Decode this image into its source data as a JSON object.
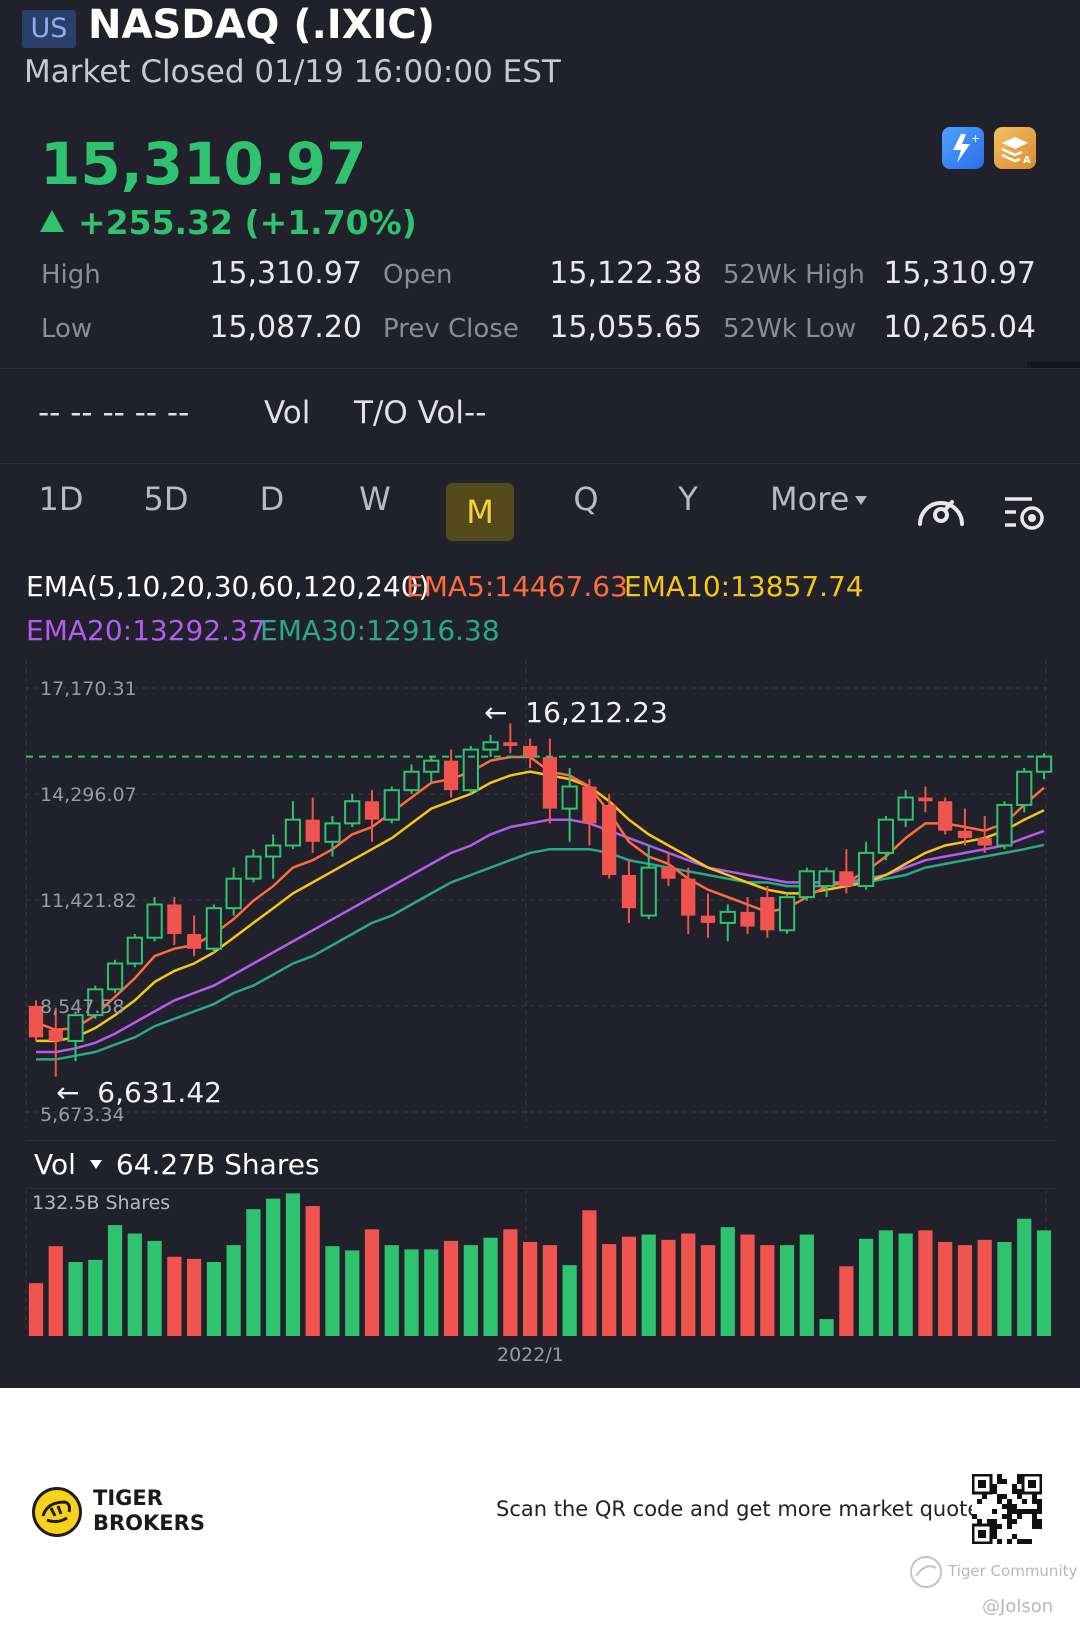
{
  "header": {
    "market_badge": "US",
    "title": "NASDAQ (.IXIC)",
    "status": "Market Closed 01/19 16:00:00 EST"
  },
  "quote": {
    "price": "15,310.97",
    "change": "+255.32 (+1.70%)",
    "stats": [
      {
        "label": "High",
        "value": "15,310.97"
      },
      {
        "label": "Open",
        "value": "15,122.38"
      },
      {
        "label": "52Wk High",
        "value": "15,310.97"
      },
      {
        "label": "Low",
        "value": "15,087.20"
      },
      {
        "label": "Prev Close",
        "value": "15,055.65"
      },
      {
        "label": "52Wk Low",
        "value": "10,265.04"
      }
    ]
  },
  "volume_row": {
    "placeholders": "-- -- -- -- --",
    "vol_label": "Vol",
    "turnover": "T/O Vol--"
  },
  "tabs": {
    "d1": "1D",
    "d5": "5D",
    "d": "D",
    "w": "W",
    "m": "M",
    "q": "Q",
    "y": "Y",
    "more": "More",
    "active": "M"
  },
  "indicators": {
    "ema_title": "EMA(5,10,20,30,60,120,240)",
    "ema5": "EMA5:14467.63",
    "ema10": "EMA10:13857.74",
    "ema20": "EMA20:13292.37",
    "ema30": "EMA30:12916.38"
  },
  "colors": {
    "up": "#2fc36f",
    "down": "#f0544f",
    "ema5": "#ff6b3d",
    "ema10": "#f5c518",
    "ema20": "#b45cf0",
    "ema30": "#2aa889",
    "background": "#20212a"
  },
  "chart_data": {
    "type": "candlestick",
    "y_ticks": [
      "17,170.31",
      "14,296.07",
      "11,421.82",
      "8,547.58",
      "5,673.34"
    ],
    "ylim": [
      5673.34,
      17170.31
    ],
    "current_price": 15310.97,
    "annotations": {
      "high": "16,212.23",
      "low": "6,631.42"
    },
    "x_label": "2022/1",
    "ohlc": [
      [
        8550,
        8700,
        7600,
        7700
      ],
      [
        7900,
        8500,
        6631.42,
        7600
      ],
      [
        7600,
        8400,
        7050,
        8300
      ],
      [
        8300,
        9100,
        8200,
        9000
      ],
      [
        9000,
        9800,
        8900,
        9700
      ],
      [
        9700,
        10500,
        9600,
        10400
      ],
      [
        10400,
        11500,
        10300,
        11300
      ],
      [
        11300,
        11500,
        10200,
        10500
      ],
      [
        10500,
        11000,
        9900,
        10100
      ],
      [
        10100,
        11300,
        10000,
        11200
      ],
      [
        11200,
        12300,
        11000,
        12000
      ],
      [
        12000,
        12800,
        11900,
        12600
      ],
      [
        12600,
        13200,
        12000,
        12900
      ],
      [
        12900,
        14100,
        12800,
        13600
      ],
      [
        13600,
        14200,
        12700,
        13000
      ],
      [
        13000,
        13700,
        12600,
        13500
      ],
      [
        13500,
        14300,
        13400,
        14100
      ],
      [
        14100,
        14400,
        13000,
        13600
      ],
      [
        13600,
        14500,
        13500,
        14400
      ],
      [
        14400,
        15100,
        14300,
        14900
      ],
      [
        14900,
        15300,
        14600,
        15200
      ],
      [
        15200,
        15500,
        14200,
        14400
      ],
      [
        14400,
        15600,
        14300,
        15500
      ],
      [
        15500,
        15900,
        15300,
        15700
      ],
      [
        15700,
        16212.23,
        15400,
        15600
      ],
      [
        15600,
        15800,
        15000,
        15300
      ],
      [
        15300,
        15800,
        13500,
        13900
      ],
      [
        13900,
        15000,
        13000,
        14500
      ],
      [
        14500,
        14700,
        12900,
        13500
      ],
      [
        14000,
        14300,
        12000,
        12100
      ],
      [
        12100,
        12500,
        10800,
        11200
      ],
      [
        11000,
        12900,
        10900,
        12300
      ],
      [
        12300,
        12700,
        11800,
        12000
      ],
      [
        12000,
        12300,
        10500,
        11000
      ],
      [
        11000,
        11600,
        10400,
        10800
      ],
      [
        10800,
        11300,
        10300,
        11100
      ],
      [
        11100,
        11500,
        10500,
        10700
      ],
      [
        11500,
        11800,
        10400,
        10600
      ],
      [
        10600,
        11600,
        10500,
        11500
      ],
      [
        11500,
        12300,
        11400,
        12200
      ],
      [
        11800,
        12300,
        11500,
        12200
      ],
      [
        12200,
        12800,
        11600,
        11800
      ],
      [
        11800,
        13000,
        11700,
        12700
      ],
      [
        12700,
        13700,
        12500,
        13600
      ],
      [
        13600,
        14400,
        13400,
        14200
      ],
      [
        14200,
        14500,
        13800,
        14100
      ],
      [
        14100,
        14200,
        13200,
        13300
      ],
      [
        13300,
        13900,
        12900,
        13100
      ],
      [
        13100,
        13700,
        12700,
        12900
      ],
      [
        12900,
        14100,
        12800,
        14000
      ],
      [
        14000,
        15000,
        13800,
        14900
      ],
      [
        14900,
        15400,
        14700,
        15311
      ]
    ],
    "ema5": [
      8100,
      7900,
      7950,
      8300,
      8800,
      9300,
      9900,
      10100,
      10200,
      10500,
      10900,
      11400,
      11800,
      12300,
      12500,
      12800,
      13200,
      13400,
      13800,
      14200,
      14600,
      14700,
      14900,
      15200,
      15300,
      15300,
      14900,
      14800,
      14500,
      13800,
      13000,
      12600,
      12400,
      12000,
      11700,
      11500,
      11300,
      11100,
      11200,
      11500,
      11800,
      11900,
      12200,
      12600,
      13100,
      13500,
      13500,
      13400,
      13300,
      13500,
      14000,
      14468
    ],
    "ema10": [
      7600,
      7600,
      7700,
      7950,
      8300,
      8700,
      9200,
      9500,
      9700,
      10000,
      10400,
      10800,
      11200,
      11600,
      11900,
      12200,
      12500,
      12800,
      13100,
      13500,
      13900,
      14100,
      14300,
      14600,
      14800,
      14900,
      14800,
      14700,
      14500,
      14100,
      13600,
      13200,
      12900,
      12600,
      12300,
      12100,
      11900,
      11700,
      11600,
      11600,
      11700,
      11800,
      11900,
      12100,
      12400,
      12700,
      12900,
      13000,
      13100,
      13300,
      13600,
      13858
    ],
    "ema20": [
      7300,
      7300,
      7400,
      7550,
      7800,
      8100,
      8400,
      8700,
      8900,
      9100,
      9400,
      9700,
      10000,
      10300,
      10600,
      10900,
      11200,
      11500,
      11800,
      12100,
      12400,
      12700,
      12900,
      13200,
      13400,
      13500,
      13600,
      13600,
      13500,
      13300,
      13100,
      12900,
      12700,
      12500,
      12300,
      12200,
      12100,
      12000,
      11900,
      11900,
      11900,
      11900,
      12000,
      12100,
      12300,
      12500,
      12600,
      12700,
      12800,
      12900,
      13100,
      13292
    ],
    "ema30": [
      7100,
      7100,
      7200,
      7300,
      7500,
      7700,
      8000,
      8200,
      8400,
      8600,
      8900,
      9100,
      9400,
      9700,
      9900,
      10200,
      10500,
      10800,
      11000,
      11300,
      11600,
      11900,
      12100,
      12300,
      12500,
      12700,
      12800,
      12800,
      12800,
      12700,
      12500,
      12400,
      12300,
      12200,
      12100,
      12000,
      11900,
      11900,
      11800,
      11800,
      11800,
      11900,
      11900,
      12000,
      12100,
      12300,
      12400,
      12500,
      12600,
      12700,
      12800,
      12916
    ]
  },
  "volume": {
    "label": "Vol",
    "value": "64.27B Shares",
    "max_label": "132.5B Shares",
    "max": 132.5,
    "bars": [
      50,
      85,
      70,
      72,
      105,
      97,
      90,
      75,
      73,
      70,
      86,
      120,
      130,
      135,
      123,
      85,
      81,
      101,
      86,
      82,
      82,
      90,
      86,
      93,
      101,
      89,
      86,
      67,
      119,
      87,
      94,
      96,
      91,
      97,
      86,
      103,
      96,
      86,
      86,
      96,
      16,
      66,
      92,
      100,
      97,
      100,
      89,
      86,
      91,
      89,
      111,
      100
    ]
  },
  "footer": {
    "brand_line1": "TIGER",
    "brand_line2": "BROKERS",
    "scan_text": "Scan the QR code and get more market quotes",
    "community": "Tiger Community",
    "watermark": "@Jolson"
  }
}
